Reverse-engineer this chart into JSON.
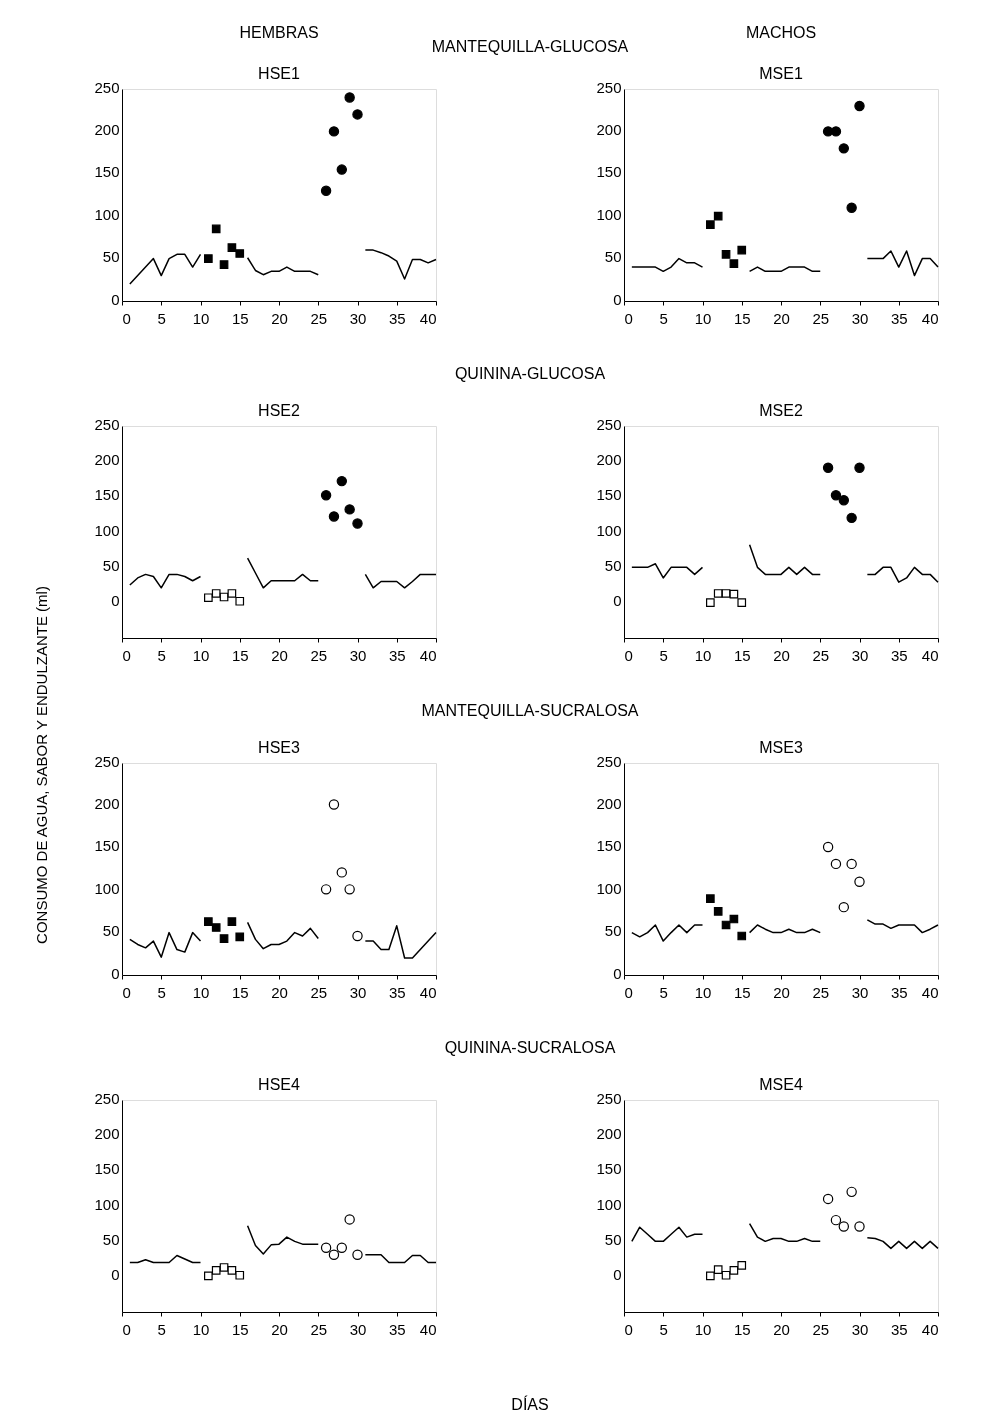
{
  "chart_data": [
    {
      "type": "line",
      "title": "HSE1",
      "annotations": [
        "HEMBRAS",
        "MANTEQUILLA-GLUCOSA"
      ],
      "x": [
        1,
        2,
        3,
        4,
        5,
        6,
        7,
        8,
        9,
        10,
        11,
        12,
        13,
        14,
        15,
        16,
        17,
        18,
        19,
        20,
        21,
        22,
        23,
        24,
        25,
        26,
        27,
        28,
        29,
        30,
        31,
        32,
        33,
        34,
        35,
        36,
        37,
        38,
        39,
        40
      ],
      "xlim": [
        0,
        40
      ],
      "xticks": [
        0,
        5,
        10,
        15,
        20,
        25,
        30,
        35,
        40
      ],
      "ylim": [
        0,
        250
      ],
      "yticks": [
        0,
        50,
        100,
        150,
        200,
        250
      ],
      "series": [
        {
          "type": "line",
          "color": "#000000",
          "values": [
            20,
            30,
            40,
            50,
            30,
            50,
            55,
            55,
            40,
            55,
            null,
            null,
            null,
            null,
            null,
            51,
            36,
            31,
            35,
            35,
            40,
            35,
            35,
            35,
            31,
            null,
            null,
            null,
            null,
            null,
            60,
            60,
            57,
            53,
            47,
            26,
            49,
            49,
            45,
            49
          ]
        },
        {
          "type": "scatter",
          "marker": "square",
          "color": "#000000",
          "x": [
            11,
            12,
            13,
            14,
            15
          ],
          "values": [
            50,
            85,
            43,
            63,
            56
          ]
        },
        {
          "type": "scatter",
          "marker": "circle",
          "color": "#000000",
          "x": [
            26,
            27,
            28,
            29,
            30
          ],
          "values": [
            130,
            200,
            155,
            240,
            220
          ]
        }
      ]
    },
    {
      "type": "line",
      "title": "MSE1",
      "annotations": [
        "MACHOS"
      ],
      "x": [
        1,
        2,
        3,
        4,
        5,
        6,
        7,
        8,
        9,
        10,
        11,
        12,
        13,
        14,
        15,
        16,
        17,
        18,
        19,
        20,
        21,
        22,
        23,
        24,
        25,
        26,
        27,
        28,
        29,
        30,
        31,
        32,
        33,
        34,
        35,
        36,
        37,
        38,
        39,
        40
      ],
      "xlim": [
        0,
        40
      ],
      "xticks": [
        0,
        5,
        10,
        15,
        20,
        25,
        30,
        35,
        40
      ],
      "ylim": [
        0,
        250
      ],
      "yticks": [
        0,
        50,
        100,
        150,
        200,
        250
      ],
      "series": [
        {
          "type": "line",
          "color": "#000000",
          "values": [
            40,
            40,
            40,
            40,
            35,
            40,
            50,
            45,
            45,
            40,
            null,
            null,
            null,
            null,
            null,
            35,
            40,
            35,
            35,
            35,
            40,
            40,
            40,
            35,
            35,
            null,
            null,
            null,
            null,
            null,
            50,
            50,
            50,
            59,
            40,
            59,
            30,
            50,
            50,
            40
          ]
        },
        {
          "type": "scatter",
          "marker": "square",
          "color": "#000000",
          "x": [
            11,
            12,
            13,
            14,
            15
          ],
          "values": [
            90,
            100,
            55,
            44,
            60
          ]
        },
        {
          "type": "scatter",
          "marker": "circle",
          "color": "#000000",
          "x": [
            26,
            27,
            28,
            29,
            30
          ],
          "values": [
            200,
            200,
            180,
            110,
            230
          ]
        }
      ]
    },
    {
      "type": "line",
      "title": "HSE2",
      "annotations": [
        "QUININA-GLUCOSA"
      ],
      "x": [
        1,
        2,
        3,
        4,
        5,
        6,
        7,
        8,
        9,
        10,
        11,
        12,
        13,
        14,
        15,
        16,
        17,
        18,
        19,
        20,
        21,
        22,
        23,
        24,
        25,
        26,
        27,
        28,
        29,
        30,
        31,
        32,
        33,
        34,
        35,
        36,
        37,
        38,
        39,
        40
      ],
      "xlim": [
        0,
        40
      ],
      "xticks": [
        0,
        5,
        10,
        15,
        20,
        25,
        30,
        35,
        40
      ],
      "ylim": [
        -50,
        250
      ],
      "yticks": [
        0,
        50,
        100,
        150,
        200,
        250
      ],
      "series": [
        {
          "type": "line",
          "color": "#000000",
          "values": [
            25,
            35,
            40,
            37,
            21,
            40,
            40,
            37,
            31,
            37,
            null,
            null,
            null,
            null,
            null,
            63,
            42,
            21,
            31,
            31,
            31,
            31,
            40,
            31,
            31,
            null,
            null,
            null,
            null,
            null,
            40,
            21,
            30,
            30,
            30,
            21,
            30,
            40,
            40,
            40
          ]
        },
        {
          "type": "scatter",
          "marker": "square",
          "color": "#ffffff",
          "x": [
            11,
            12,
            13,
            14,
            15
          ],
          "values": [
            7,
            13,
            8,
            13,
            2
          ]
        },
        {
          "type": "scatter",
          "marker": "circle",
          "color": "#000000",
          "x": [
            26,
            27,
            28,
            29,
            30
          ],
          "values": [
            152,
            122,
            172,
            132,
            112
          ]
        }
      ]
    },
    {
      "type": "line",
      "title": "MSE2",
      "x": [
        1,
        2,
        3,
        4,
        5,
        6,
        7,
        8,
        9,
        10,
        11,
        12,
        13,
        14,
        15,
        16,
        17,
        18,
        19,
        20,
        21,
        22,
        23,
        24,
        25,
        26,
        27,
        28,
        29,
        30,
        31,
        32,
        33,
        34,
        35,
        36,
        37,
        38,
        39,
        40
      ],
      "xlim": [
        0,
        40
      ],
      "xticks": [
        0,
        5,
        10,
        15,
        20,
        25,
        30,
        35,
        40
      ],
      "ylim": [
        -50,
        250
      ],
      "yticks": [
        0,
        50,
        100,
        150,
        200,
        250
      ],
      "series": [
        {
          "type": "line",
          "color": "#000000",
          "values": [
            50,
            50,
            50,
            55,
            35,
            50,
            50,
            50,
            40,
            50,
            null,
            null,
            null,
            null,
            null,
            82,
            50,
            40,
            40,
            40,
            50,
            40,
            50,
            40,
            40,
            null,
            null,
            null,
            null,
            null,
            40,
            40,
            50,
            50,
            29,
            35,
            50,
            40,
            40,
            29
          ]
        },
        {
          "type": "scatter",
          "marker": "square",
          "color": "#ffffff",
          "x": [
            11,
            12,
            13,
            14,
            15
          ],
          "values": [
            0,
            13,
            13,
            12,
            0
          ]
        },
        {
          "type": "scatter",
          "marker": "circle",
          "color": "#000000",
          "x": [
            26,
            27,
            28,
            29,
            30
          ],
          "values": [
            191,
            152,
            145,
            120,
            191
          ]
        }
      ]
    },
    {
      "type": "line",
      "title": "HSE3",
      "ylabel": "CONSUMO DE AGUA, SABOR Y ENDULZANTE (ml)",
      "annotations": [
        "MANTEQUILLA-SUCRALOSA"
      ],
      "x": [
        1,
        2,
        3,
        4,
        5,
        6,
        7,
        8,
        9,
        10,
        11,
        12,
        13,
        14,
        15,
        16,
        17,
        18,
        19,
        20,
        21,
        22,
        23,
        24,
        25,
        26,
        27,
        28,
        29,
        30,
        31,
        32,
        33,
        34,
        35,
        36,
        37,
        38,
        39,
        40
      ],
      "xlim": [
        0,
        40
      ],
      "xticks": [
        0,
        5,
        10,
        15,
        20,
        25,
        30,
        35,
        40
      ],
      "ylim": [
        0,
        250
      ],
      "yticks": [
        0,
        50,
        100,
        150,
        200,
        250
      ],
      "series": [
        {
          "type": "line",
          "color": "#000000",
          "values": [
            42,
            36,
            32,
            40,
            21,
            50,
            30,
            27,
            50,
            40,
            null,
            null,
            null,
            null,
            null,
            62,
            42,
            31,
            36,
            36,
            40,
            50,
            46,
            55,
            43,
            null,
            null,
            null,
            null,
            null,
            40,
            40,
            30,
            30,
            58,
            20,
            20,
            30,
            40,
            50
          ]
        },
        {
          "type": "scatter",
          "marker": "square",
          "color": "#000000",
          "x": [
            11,
            12,
            13,
            14,
            15
          ],
          "values": [
            63,
            56,
            43,
            63,
            45
          ]
        },
        {
          "type": "scatter",
          "marker": "circle",
          "color": "#ffffff",
          "x": [
            26,
            27,
            28,
            29,
            30
          ],
          "values": [
            101,
            201,
            121,
            101,
            46
          ]
        }
      ]
    },
    {
      "type": "line",
      "title": "MSE3",
      "x": [
        1,
        2,
        3,
        4,
        5,
        6,
        7,
        8,
        9,
        10,
        11,
        12,
        13,
        14,
        15,
        16,
        17,
        18,
        19,
        20,
        21,
        22,
        23,
        24,
        25,
        26,
        27,
        28,
        29,
        30,
        31,
        32,
        33,
        34,
        35,
        36,
        37,
        38,
        39,
        40
      ],
      "xlim": [
        0,
        40
      ],
      "xticks": [
        0,
        5,
        10,
        15,
        20,
        25,
        30,
        35,
        40
      ],
      "ylim": [
        0,
        250
      ],
      "yticks": [
        0,
        50,
        100,
        150,
        200,
        250
      ],
      "series": [
        {
          "type": "line",
          "color": "#000000",
          "values": [
            50,
            45,
            50,
            59,
            40,
            50,
            59,
            50,
            59,
            59,
            null,
            null,
            null,
            null,
            null,
            50,
            59,
            54,
            50,
            50,
            54,
            50,
            50,
            54,
            50,
            null,
            null,
            null,
            null,
            null,
            65,
            60,
            60,
            55,
            59,
            59,
            59,
            50,
            54,
            59
          ]
        },
        {
          "type": "scatter",
          "marker": "square",
          "color": "#000000",
          "x": [
            11,
            12,
            13,
            14,
            15
          ],
          "values": [
            90,
            75,
            59,
            66,
            46
          ]
        },
        {
          "type": "scatter",
          "marker": "circle",
          "color": "#ffffff",
          "x": [
            26,
            27,
            28,
            29,
            30
          ],
          "values": [
            151,
            131,
            80,
            131,
            110
          ]
        }
      ]
    },
    {
      "type": "line",
      "title": "HSE4",
      "xlabel": "DÍAS",
      "annotations": [
        "QUININA-SUCRALOSA"
      ],
      "x": [
        1,
        2,
        3,
        4,
        5,
        6,
        7,
        8,
        9,
        10,
        11,
        12,
        13,
        14,
        15,
        16,
        17,
        18,
        19,
        20,
        21,
        22,
        23,
        24,
        25,
        26,
        27,
        28,
        29,
        30,
        31,
        32,
        33,
        34,
        35,
        36,
        37,
        38,
        39,
        40
      ],
      "xlim": [
        0,
        40
      ],
      "xticks": [
        0,
        5,
        10,
        15,
        20,
        25,
        30,
        35,
        40
      ],
      "ylim": [
        -50,
        250
      ],
      "yticks": [
        0,
        50,
        100,
        150,
        200,
        250
      ],
      "series": [
        {
          "type": "line",
          "color": "#000000",
          "values": [
            20,
            20,
            24,
            20,
            20,
            20,
            30,
            25,
            20,
            20,
            null,
            null,
            null,
            null,
            null,
            72,
            44,
            32,
            45,
            46,
            56,
            50,
            46,
            46,
            46,
            null,
            null,
            null,
            null,
            null,
            31,
            31,
            31,
            20,
            20,
            20,
            30,
            30,
            20,
            20
          ]
        },
        {
          "type": "scatter",
          "marker": "square",
          "color": "#ffffff",
          "x": [
            11,
            12,
            13,
            14,
            15
          ],
          "values": [
            1,
            9,
            13,
            9,
            2
          ]
        },
        {
          "type": "scatter",
          "marker": "circle",
          "color": "#ffffff",
          "x": [
            26,
            27,
            28,
            29,
            30
          ],
          "values": [
            41,
            31,
            41,
            81,
            31
          ]
        }
      ]
    },
    {
      "type": "line",
      "title": "MSE4",
      "x": [
        1,
        2,
        3,
        4,
        5,
        6,
        7,
        8,
        9,
        10,
        11,
        12,
        13,
        14,
        15,
        16,
        17,
        18,
        19,
        20,
        21,
        22,
        23,
        24,
        25,
        26,
        27,
        28,
        29,
        30,
        31,
        32,
        33,
        34,
        35,
        36,
        37,
        38,
        39,
        40
      ],
      "xlim": [
        0,
        40
      ],
      "xticks": [
        0,
        5,
        10,
        15,
        20,
        25,
        30,
        35,
        40
      ],
      "ylim": [
        -50,
        250
      ],
      "yticks": [
        0,
        50,
        100,
        150,
        200,
        250
      ],
      "series": [
        {
          "type": "line",
          "color": "#000000",
          "values": [
            50,
            70,
            60,
            50,
            50,
            60,
            70,
            56,
            60,
            60,
            null,
            null,
            null,
            null,
            null,
            75,
            56,
            50,
            54,
            54,
            50,
            50,
            54,
            50,
            50,
            null,
            null,
            null,
            null,
            null,
            55,
            54,
            50,
            40,
            50,
            40,
            50,
            40,
            50,
            40
          ]
        },
        {
          "type": "scatter",
          "marker": "square",
          "color": "#ffffff",
          "x": [
            11,
            12,
            13,
            14,
            15
          ],
          "values": [
            1,
            10,
            2,
            9,
            16
          ]
        },
        {
          "type": "scatter",
          "marker": "circle",
          "color": "#ffffff",
          "x": [
            26,
            27,
            28,
            29,
            30
          ],
          "values": [
            110,
            80,
            71,
            120,
            71
          ]
        }
      ]
    }
  ]
}
